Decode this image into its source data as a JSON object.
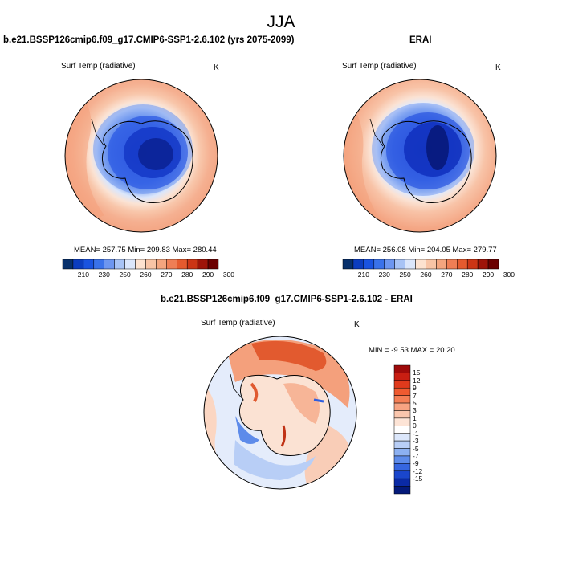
{
  "figure": {
    "season": "JJA"
  },
  "panels": [
    {
      "title": "b.e21.BSSP126cmip6.f09_g17.CMIP6-SSP1-2.6.102 (yrs 2075-2099)",
      "variable": "Surf Temp (radiative)",
      "units": "K",
      "stats": "MEAN= 257.75  Min= 209.83  Max= 280.44",
      "colorbar": {
        "colors": [
          "#08306b",
          "#0c3dbf",
          "#1a53e0",
          "#3a72ea",
          "#6d96f0",
          "#a8c3f5",
          "#dbe6fb",
          "#fde2d0",
          "#f8c4a6",
          "#f4a57f",
          "#ef7e55",
          "#e55a2e",
          "#cc3515",
          "#9e1409",
          "#6b0000"
        ],
        "labels": [
          "210",
          "230",
          "250",
          "260",
          "270",
          "280",
          "290",
          "300"
        ]
      }
    },
    {
      "title": "ERAI",
      "variable": "Surf Temp (radiative)",
      "units": "K",
      "stats": "MEAN= 256.08  Min= 204.05  Max= 279.77",
      "colorbar": {
        "colors": [
          "#08306b",
          "#0c3dbf",
          "#1a53e0",
          "#3a72ea",
          "#6d96f0",
          "#a8c3f5",
          "#dbe6fb",
          "#fde2d0",
          "#f8c4a6",
          "#f4a57f",
          "#ef7e55",
          "#e55a2e",
          "#cc3515",
          "#9e1409",
          "#6b0000"
        ],
        "labels": [
          "210",
          "230",
          "250",
          "260",
          "270",
          "280",
          "290",
          "300"
        ]
      }
    },
    {
      "title": "b.e21.BSSP126cmip6.f09_g17.CMIP6-SSP1-2.6.102 - ERAI",
      "variable": "Surf Temp (radiative)",
      "units": "K",
      "stats": "MIN =  -9.53 MAX =  20.20",
      "colorbar": {
        "colors": [
          "#9e0a0a",
          "#c81e12",
          "#e03a1c",
          "#ef5a30",
          "#f47e55",
          "#f7a382",
          "#fac6ad",
          "#fde4d6",
          "#ffffff",
          "#dce7fb",
          "#b8cef6",
          "#8cb0f1",
          "#5d8bea",
          "#3666e0",
          "#1a46cc",
          "#0a2aa6",
          "#041a7a"
        ],
        "labels": [
          "15",
          "12",
          "9",
          "7",
          "5",
          "3",
          "1",
          "0",
          "-1",
          "-3",
          "-5",
          "-7",
          "-9",
          "-12",
          "-15"
        ]
      }
    }
  ]
}
